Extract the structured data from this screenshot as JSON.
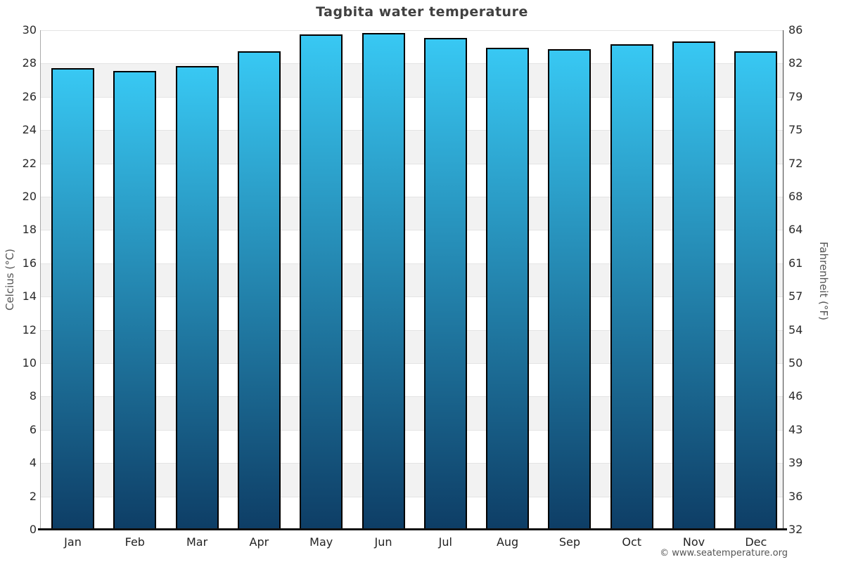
{
  "title": "Tagbita water temperature",
  "watermark": "© www.seatemperature.org",
  "chart_data": {
    "type": "bar",
    "title": "Tagbita water temperature",
    "categories": [
      "Jan",
      "Feb",
      "Mar",
      "Apr",
      "May",
      "Jun",
      "Jul",
      "Aug",
      "Sep",
      "Oct",
      "Nov",
      "Dec"
    ],
    "values": [
      27.7,
      27.5,
      27.8,
      28.7,
      29.7,
      29.8,
      29.5,
      28.9,
      28.8,
      29.1,
      29.3,
      28.7
    ],
    "unit": "°C",
    "ylabel_left": "Celcius (°C)",
    "ylabel_right": "Fahrenheit (°F)",
    "ylim": [
      0,
      30
    ],
    "yticks_celsius": [
      30,
      28,
      26,
      24,
      22,
      20,
      18,
      16,
      14,
      12,
      10,
      8,
      6,
      4,
      2,
      0
    ],
    "yticks_fahrenheit": [
      86,
      82,
      79,
      75,
      72,
      68,
      64,
      61,
      57,
      54,
      50,
      46,
      43,
      39,
      36,
      32
    ],
    "grid": "alternating white/gray horizontal bands every 2°C with thin gridlines",
    "legend": "none",
    "colors": {
      "bar_gradient_top": "#38c8f3",
      "bar_gradient_bottom": "#0e3e66",
      "bar_border": "#000000",
      "band_shade": "#f2f2f2",
      "band_light": "#ffffff",
      "gridline": "#e4e4e4",
      "title_text": "#404040",
      "tick_text": "#2b2b2b",
      "axis_title_text": "#555555",
      "watermark_text": "#555555",
      "left_spine": "#aaaaaa",
      "right_spine": "#444444",
      "bottom_axis": "#111111"
    }
  }
}
